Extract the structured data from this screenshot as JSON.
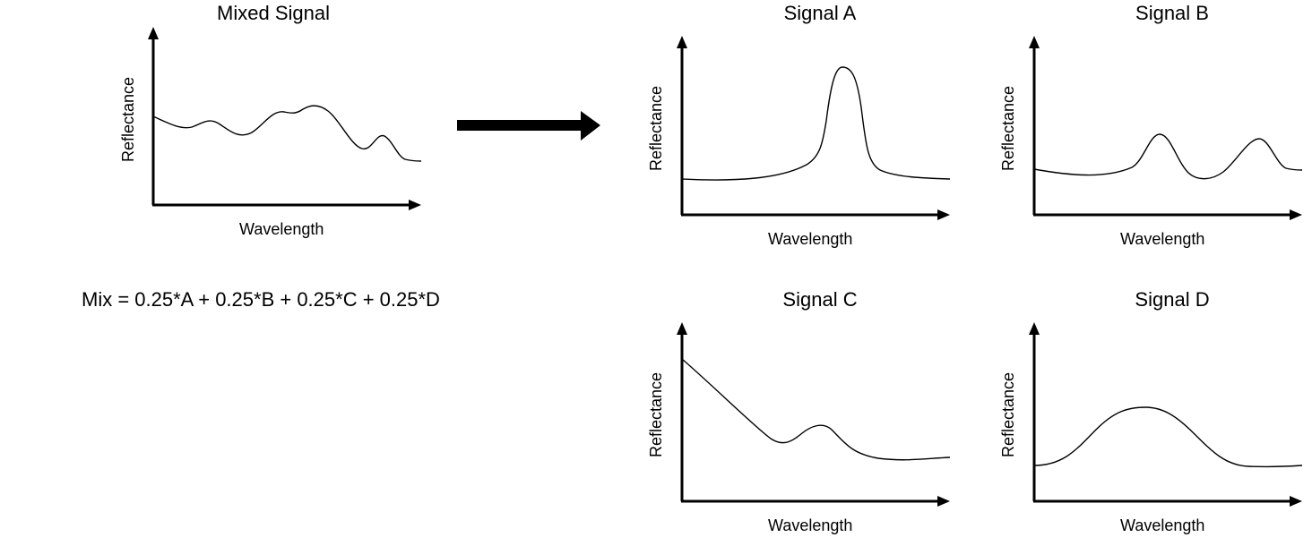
{
  "mixed": {
    "title": "Mixed Signal",
    "x_label": "Wavelength",
    "y_label": "Reflectance"
  },
  "formula": "Mix = 0.25*A + 0.25*B + 0.25*C + 0.25*D",
  "arrow_icon": "right-arrow-icon",
  "signals": [
    {
      "title": "Signal A",
      "x_label": "Wavelength",
      "y_label": "Reflectance"
    },
    {
      "title": "Signal B",
      "x_label": "Wavelength",
      "y_label": "Reflectance"
    },
    {
      "title": "Signal C",
      "x_label": "Wavelength",
      "y_label": "Reflectance"
    },
    {
      "title": "Signal D",
      "x_label": "Wavelength",
      "y_label": "Reflectance"
    }
  ],
  "colors": {
    "line": "#000000",
    "background": "#ffffff"
  }
}
